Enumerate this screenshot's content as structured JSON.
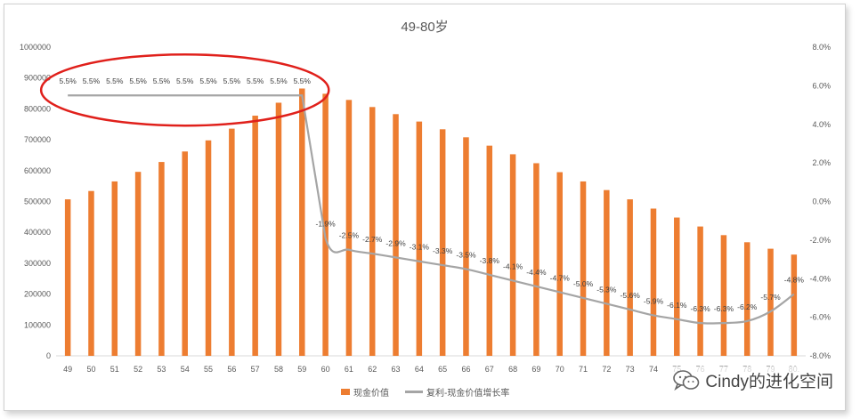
{
  "chart_data": {
    "type": "bar+line",
    "title": "49-80岁",
    "categories": [
      "49",
      "50",
      "51",
      "52",
      "53",
      "54",
      "55",
      "56",
      "57",
      "58",
      "59",
      "60",
      "61",
      "62",
      "63",
      "64",
      "65",
      "66",
      "67",
      "68",
      "69",
      "70",
      "71",
      "72",
      "73",
      "74",
      "75",
      "76",
      "77",
      "78",
      "79",
      "80"
    ],
    "series": [
      {
        "name": "现金价值",
        "axis": "left",
        "type": "bar",
        "color": "#ED7D31",
        "values": [
          507000,
          534000,
          565000,
          596000,
          628000,
          662000,
          698000,
          736000,
          778000,
          820000,
          866000,
          849000,
          829000,
          806000,
          783000,
          759000,
          734000,
          708000,
          681000,
          653000,
          624000,
          595000,
          565000,
          537000,
          507000,
          477000,
          448000,
          419000,
          391000,
          368000,
          347000,
          328000
        ]
      },
      {
        "name": "复利-现金价值增长率",
        "axis": "right",
        "type": "line",
        "color": "#A5A5A5",
        "values": [
          5.5,
          5.5,
          5.5,
          5.5,
          5.5,
          5.5,
          5.5,
          5.5,
          5.5,
          5.5,
          5.5,
          -1.9,
          -2.5,
          -2.7,
          -2.9,
          -3.1,
          -3.3,
          -3.5,
          -3.8,
          -4.1,
          -4.4,
          -4.7,
          -5.0,
          -5.3,
          -5.6,
          -5.9,
          -6.1,
          -6.3,
          -6.3,
          -6.2,
          -5.7,
          -4.8
        ],
        "labels": [
          "5.5%",
          "5.5%",
          "5.5%",
          "5.5%",
          "5.5%",
          "5.5%",
          "5.5%",
          "5.5%",
          "5.5%",
          "5.5%",
          "5.5%",
          "-1.9%",
          "-2.5%",
          "-2.7%",
          "-2.9%",
          "-3.1%",
          "-3.3%",
          "-3.5%",
          "-3.8%",
          "-4.1%",
          "-4.4%",
          "-4.7%",
          "-5.0%",
          "-5.3%",
          "-5.6%",
          "-5.9%",
          "-6.1%",
          "-6.3%",
          "-6.3%",
          "-6.2%",
          "-5.7%",
          "-4.8%"
        ]
      }
    ],
    "y_left": {
      "min": 0,
      "max": 1000000,
      "ticks": [
        "0",
        "100000",
        "200000",
        "300000",
        "400000",
        "500000",
        "600000",
        "700000",
        "800000",
        "900000",
        "1000000"
      ]
    },
    "y_right": {
      "min": -8,
      "max": 8,
      "ticks": [
        "-8.0%",
        "-6.0%",
        "-4.0%",
        "-2.0%",
        "0.0%",
        "2.0%",
        "4.0%",
        "6.0%",
        "8.0%"
      ]
    },
    "x_tick_labels": [
      "49",
      "50",
      "51",
      "52",
      "53",
      "54",
      "55",
      "56",
      "57",
      "58",
      "59",
      "60",
      "61",
      "62",
      "63",
      "64",
      "65",
      "66",
      "67",
      "68",
      "69",
      "70",
      "71",
      "72",
      "73",
      "74",
      "75",
      "76",
      "77",
      "78",
      "79",
      "80."
    ],
    "grid": false,
    "legend_position": "bottom",
    "annotation": {
      "shape": "ellipse",
      "color": "#E0201B",
      "highlights_categories": [
        "49",
        "59"
      ]
    }
  },
  "watermark": {
    "text": "Cindy的进化空间",
    "icon": "wechat-icon"
  }
}
